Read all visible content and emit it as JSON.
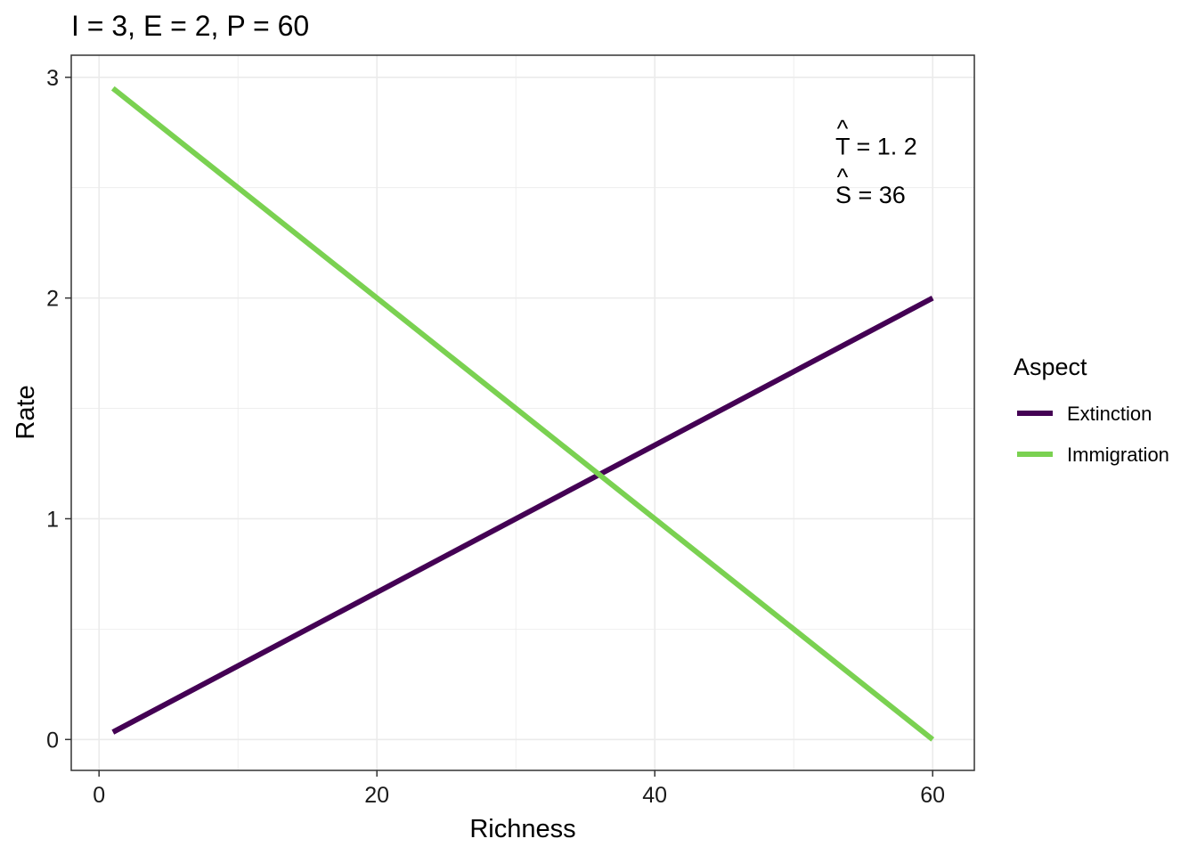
{
  "chart_data": {
    "type": "line",
    "title": "I = 3, E = 2, P = 60",
    "xlabel": "Richness",
    "ylabel": "Rate",
    "xlim": [
      -2,
      63
    ],
    "ylim": [
      -0.14,
      3.1
    ],
    "xticks": [
      0,
      20,
      40,
      60
    ],
    "yticks": [
      0,
      1,
      2,
      3
    ],
    "xtick_labels": [
      "0",
      "20",
      "40",
      "60"
    ],
    "ytick_labels": [
      "0",
      "1",
      "2",
      "3"
    ],
    "grid": true,
    "legend": {
      "title": "Aspect",
      "position": "right"
    },
    "series": [
      {
        "name": "Extinction",
        "color": "#440154",
        "x": [
          1,
          60
        ],
        "y": [
          0.0333,
          2.0
        ]
      },
      {
        "name": "Immigration",
        "color": "#7AD151",
        "x": [
          1,
          60
        ],
        "y": [
          2.95,
          0.0
        ]
      }
    ],
    "annotations": [
      {
        "label": "T",
        "hat": true,
        "text": " = 1. 2",
        "x": 53,
        "y": 2.65
      },
      {
        "label": "S",
        "hat": true,
        "text": " = 36",
        "x": 53,
        "y": 2.43
      }
    ]
  }
}
